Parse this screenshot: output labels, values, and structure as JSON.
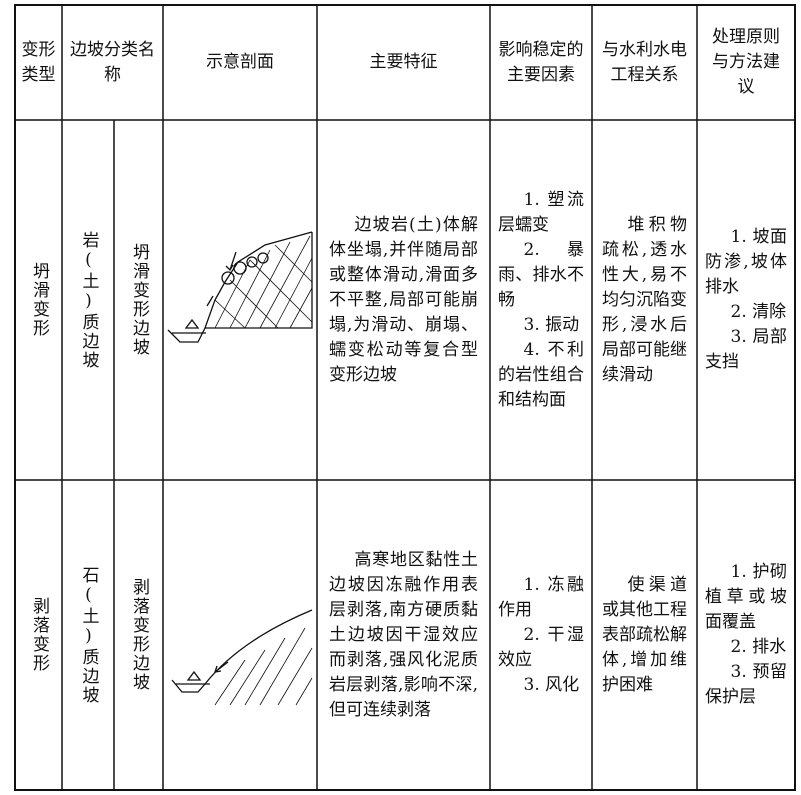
{
  "header": {
    "columns": [
      "变形类型",
      "边坡分类名称",
      "示意剖面",
      "主要特征",
      "影响稳定的主要因素",
      "与水利水电工程关系",
      "处理原则与方法建议"
    ]
  },
  "rows": [
    {
      "type": "坍滑变形",
      "slope_class": "岩(土)质边坡",
      "slope_name": "坍滑变形边坡",
      "features": "边坡岩(土)体解体坐塌,并伴随局部或整体滑动,滑面多不平整,局部可能崩塌,为滑动、崩塌、蠕变松动等复合型变形边坡",
      "factors": [
        "1. 塑流层蠕变",
        "2. 暴雨、排水不畅",
        "3. 振动",
        "4. 不利的岩性组合和结构面"
      ],
      "relation": "堆积物疏松,透水性大,易不均匀沉陷变形,浸水后局部可能继续滑动",
      "treatment": [
        "1. 坡面防渗,坡体排水",
        "2. 清除",
        "3. 局部支挡"
      ]
    },
    {
      "type": "剥落变形",
      "slope_class": "石(土)质边坡",
      "slope_name": "剥落变形边坡",
      "features": "高寒地区黏性土边坡因冻融作用表层剥落,南方硬质黏土边坡因干湿效应而剥落,强风化泥质岩层剥落,影响不深,但可连续剥落",
      "factors": [
        "1. 冻融作用",
        "2. 干湿效应",
        "3. 风化"
      ],
      "relation": "使渠道或其他工程表部疏松解体,增加维护困难",
      "treatment": [
        "1. 护砌植草或坡面覆盖",
        "2. 排水",
        "3. 预留保护层"
      ]
    }
  ]
}
